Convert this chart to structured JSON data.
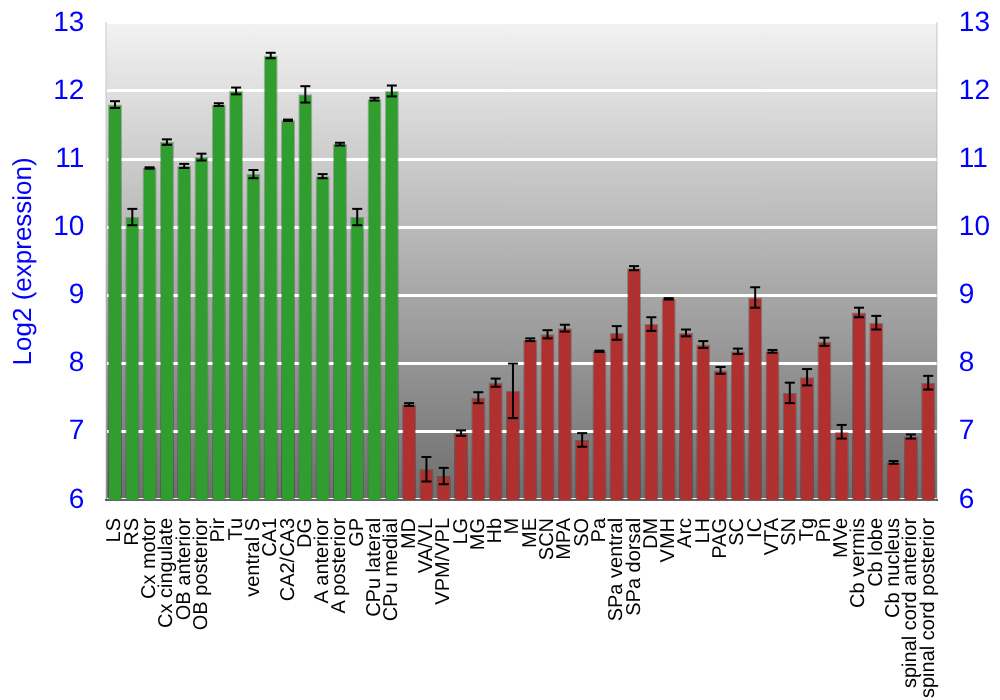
{
  "chart_data": {
    "type": "bar",
    "ylabel": "Log2 (expression)",
    "categories": [
      "LS",
      "RS",
      "Cx motor",
      "Cx cingulate",
      "OB anterior",
      "OB posterior",
      "Pir",
      "Tu",
      "ventral S",
      "CA1",
      "CA2/CA3",
      "DG",
      "A anterior",
      "A posterior",
      "GP",
      "CPu lateral",
      "CPu medial",
      "MD",
      "VA/VL",
      "VPM/VPL",
      "LG",
      "MG",
      "Hb",
      "M",
      "ME",
      "SCN",
      "MPA",
      "SO",
      "Pa",
      "SPa ventral",
      "SPa dorsal",
      "DM",
      "VMH",
      "Arc",
      "LH",
      "PAG",
      "SC",
      "IC",
      "VTA",
      "SN",
      "Tg",
      "Pn",
      "MVe",
      "Cb vermis",
      "Cb lobe",
      "Cb nucleus",
      "spinal cord anterior",
      "spinal cord posterior"
    ],
    "values": [
      11.8,
      10.15,
      10.87,
      11.25,
      10.9,
      11.03,
      11.8,
      12.0,
      10.78,
      12.52,
      11.57,
      11.95,
      10.75,
      11.22,
      10.15,
      11.88,
      12.0,
      7.4,
      6.45,
      6.35,
      6.98,
      7.5,
      7.72,
      7.6,
      8.35,
      8.43,
      8.52,
      6.88,
      8.18,
      8.45,
      9.4,
      8.58,
      8.95,
      8.45,
      8.28,
      7.9,
      8.18,
      8.97,
      8.18,
      7.57,
      7.8,
      8.32,
      7.0,
      8.75,
      8.6,
      6.55,
      6.93,
      7.72
    ],
    "errors": [
      0.05,
      0.12,
      0.01,
      0.04,
      0.03,
      0.05,
      0.02,
      0.05,
      0.06,
      0.04,
      0.01,
      0.12,
      0.03,
      0.02,
      0.12,
      0.02,
      0.08,
      0.02,
      0.18,
      0.12,
      0.04,
      0.08,
      0.06,
      0.4,
      0.02,
      0.06,
      0.05,
      0.1,
      0.01,
      0.1,
      0.03,
      0.1,
      0.01,
      0.05,
      0.05,
      0.05,
      0.04,
      0.15,
      0.02,
      0.15,
      0.12,
      0.06,
      0.1,
      0.07,
      0.1,
      0.02,
      0.03,
      0.1
    ],
    "colors": [
      "#2f9e2f",
      "#2f9e2f",
      "#2f9e2f",
      "#2f9e2f",
      "#2f9e2f",
      "#2f9e2f",
      "#2f9e2f",
      "#2f9e2f",
      "#2f9e2f",
      "#2f9e2f",
      "#2f9e2f",
      "#2f9e2f",
      "#2f9e2f",
      "#2f9e2f",
      "#2f9e2f",
      "#2f9e2f",
      "#2f9e2f",
      "#b03030",
      "#b03030",
      "#b03030",
      "#b03030",
      "#b03030",
      "#b03030",
      "#b03030",
      "#b03030",
      "#b03030",
      "#b03030",
      "#b03030",
      "#b03030",
      "#b03030",
      "#b03030",
      "#b03030",
      "#b03030",
      "#b03030",
      "#b03030",
      "#b03030",
      "#b03030",
      "#b03030",
      "#b03030",
      "#b03030",
      "#b03030",
      "#b03030",
      "#b03030",
      "#b03030",
      "#b03030",
      "#b03030",
      "#b03030",
      "#b03030"
    ],
    "ylim": [
      6,
      13
    ],
    "yticks": [
      6,
      7,
      8,
      9,
      10,
      11,
      12,
      13
    ],
    "y2lim": [
      6,
      13
    ],
    "y2ticks": [
      6,
      7,
      8,
      9,
      10,
      11,
      12,
      13
    ],
    "grid": "y",
    "legend": false
  }
}
